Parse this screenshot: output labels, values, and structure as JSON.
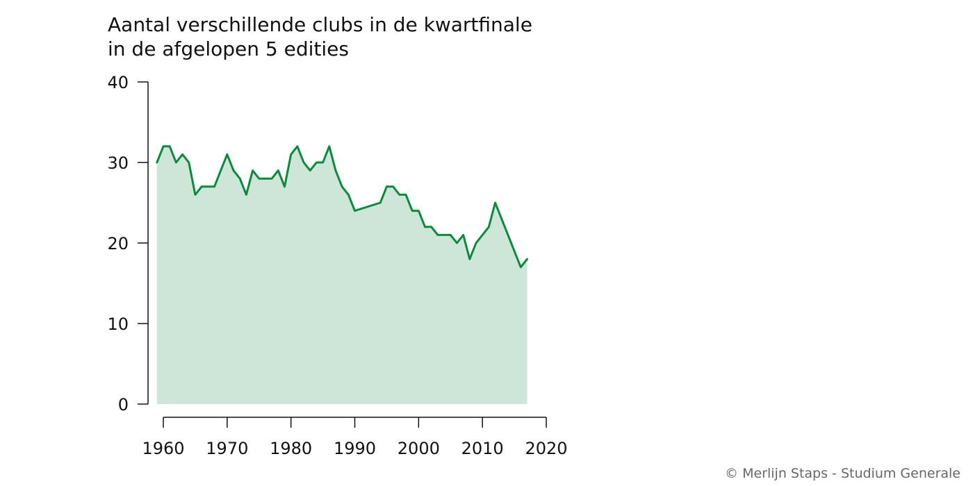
{
  "chart_data": {
    "type": "area",
    "title_lines": [
      "Aantal verschillende clubs in de kwartfinale",
      "in de afgelopen 5 edities"
    ],
    "xlabel": "",
    "ylabel": "",
    "xlim": [
      1958,
      2020
    ],
    "ylim": [
      0,
      40
    ],
    "x_ticks": [
      1960,
      1970,
      1980,
      1990,
      2000,
      2010,
      2020
    ],
    "y_ticks": [
      0,
      10,
      20,
      30,
      40
    ],
    "grid": false,
    "legend": "none",
    "colors": {
      "line": "#0b8a3c",
      "fill": "#cde6d8",
      "axis": "#111111"
    },
    "series": [
      {
        "x": [
          1959,
          1960,
          1961,
          1962,
          1963,
          1964,
          1965,
          1966,
          1967,
          1968,
          1969,
          1970,
          1971,
          1972,
          1973,
          1974,
          1975,
          1976,
          1977,
          1978,
          1979,
          1980,
          1981,
          1982,
          1983,
          1984,
          1985,
          1986,
          1987,
          1988,
          1989,
          1990,
          1994,
          1995,
          1996,
          1997,
          1998,
          1999,
          2000,
          2001,
          2002,
          2003,
          2004,
          2005,
          2006,
          2007,
          2008,
          2009,
          2011,
          2012,
          2016,
          2017
        ],
        "values": [
          30,
          32,
          32,
          30,
          31,
          30,
          26,
          27,
          27,
          27,
          29,
          31,
          29,
          28,
          26,
          29,
          28,
          28,
          28,
          29,
          27,
          31,
          32,
          30,
          29,
          30,
          30,
          32,
          29,
          27,
          26,
          24,
          25,
          27,
          27,
          26,
          26,
          24,
          24,
          22,
          22,
          21,
          21,
          21,
          20,
          21,
          18,
          20,
          22,
          25,
          17,
          18
        ]
      }
    ]
  },
  "credit": "© Merlijn Staps - Studium Generale"
}
